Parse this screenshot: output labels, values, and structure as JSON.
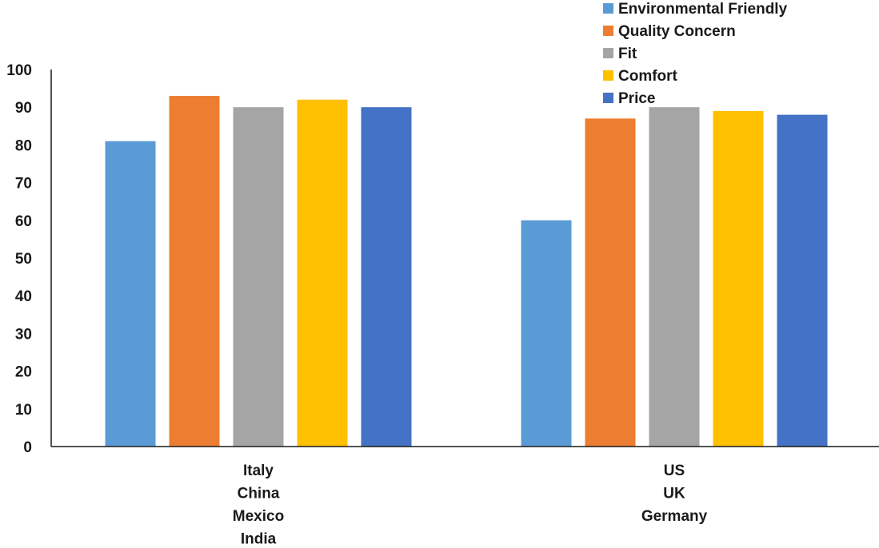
{
  "chart_data": {
    "type": "bar",
    "title": "",
    "xlabel": "",
    "ylabel": "",
    "ylim": [
      0,
      100
    ],
    "yticks": [
      0,
      10,
      20,
      30,
      40,
      50,
      60,
      70,
      80,
      90,
      100
    ],
    "grid": false,
    "legend_position": "top-right",
    "categories": [
      [
        "Italy",
        "China",
        "Mexico",
        "India"
      ],
      [
        "US",
        "UK",
        "Germany"
      ]
    ],
    "series": [
      {
        "name": "Environmental Friendly",
        "color": "#5b9bd5",
        "values": [
          81,
          60
        ]
      },
      {
        "name": "Quality Concern",
        "color": "#ed7d31",
        "values": [
          93,
          87
        ]
      },
      {
        "name": "Fit",
        "color": "#a5a5a5",
        "values": [
          90,
          90
        ]
      },
      {
        "name": "Comfort",
        "color": "#ffc000",
        "values": [
          92,
          89
        ]
      },
      {
        "name": "Price",
        "color": "#4472c4",
        "values": [
          90,
          88
        ]
      }
    ]
  }
}
